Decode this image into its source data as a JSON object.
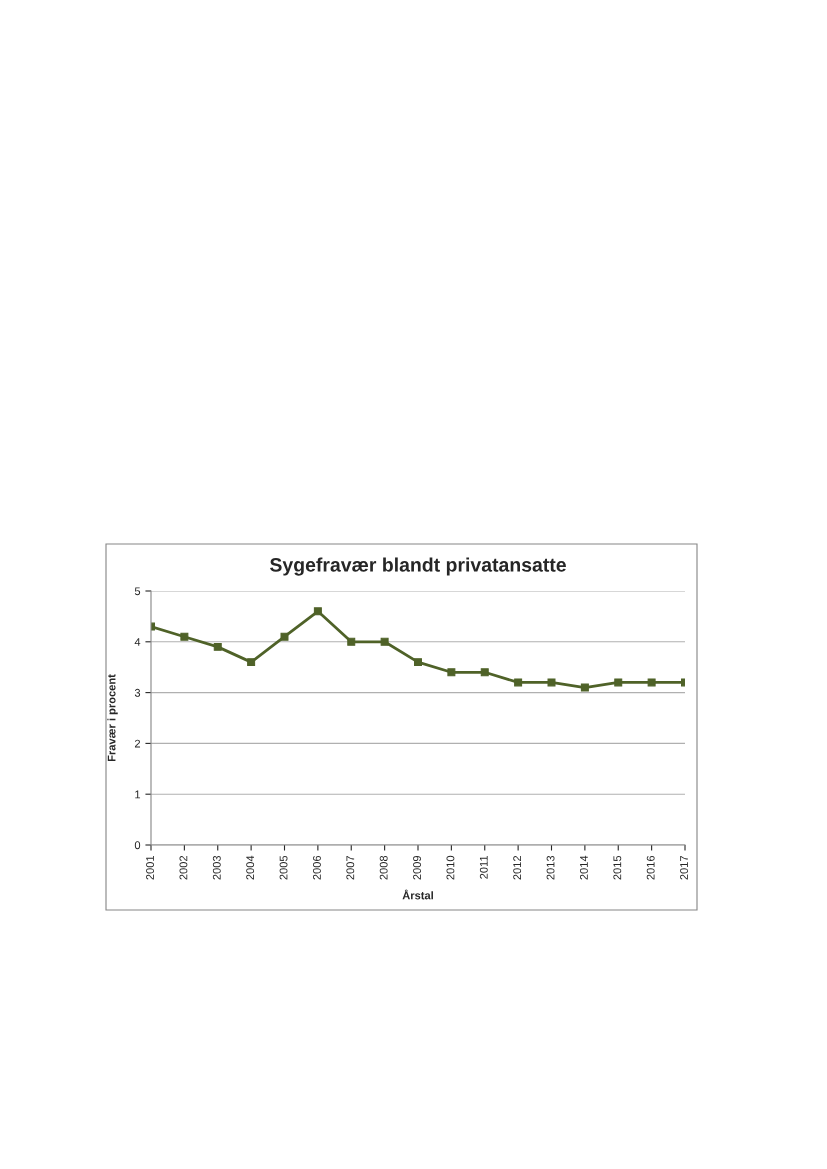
{
  "chart_data": {
    "type": "line",
    "title": "Sygefravær blandt privatansatte",
    "xlabel": "Årstal",
    "ylabel": "Fravær i procent",
    "categories": [
      "2001",
      "2002",
      "2003",
      "2004",
      "2005",
      "2006",
      "2007",
      "2008",
      "2009",
      "2010",
      "2011",
      "2012",
      "2013",
      "2014",
      "2015",
      "2016",
      "2017"
    ],
    "series": [
      {
        "color": "#4f6228",
        "values": [
          4.3,
          4.1,
          3.9,
          3.6,
          4.1,
          4.6,
          4.0,
          4.0,
          3.6,
          3.4,
          3.4,
          3.2,
          3.2,
          3.1,
          3.2,
          3.2,
          3.2
        ]
      }
    ],
    "ylim": [
      0,
      5
    ],
    "yticks": [
      0,
      1,
      2,
      3,
      4,
      5
    ],
    "grid": "y",
    "marker": "square",
    "line_style": "solid"
  }
}
